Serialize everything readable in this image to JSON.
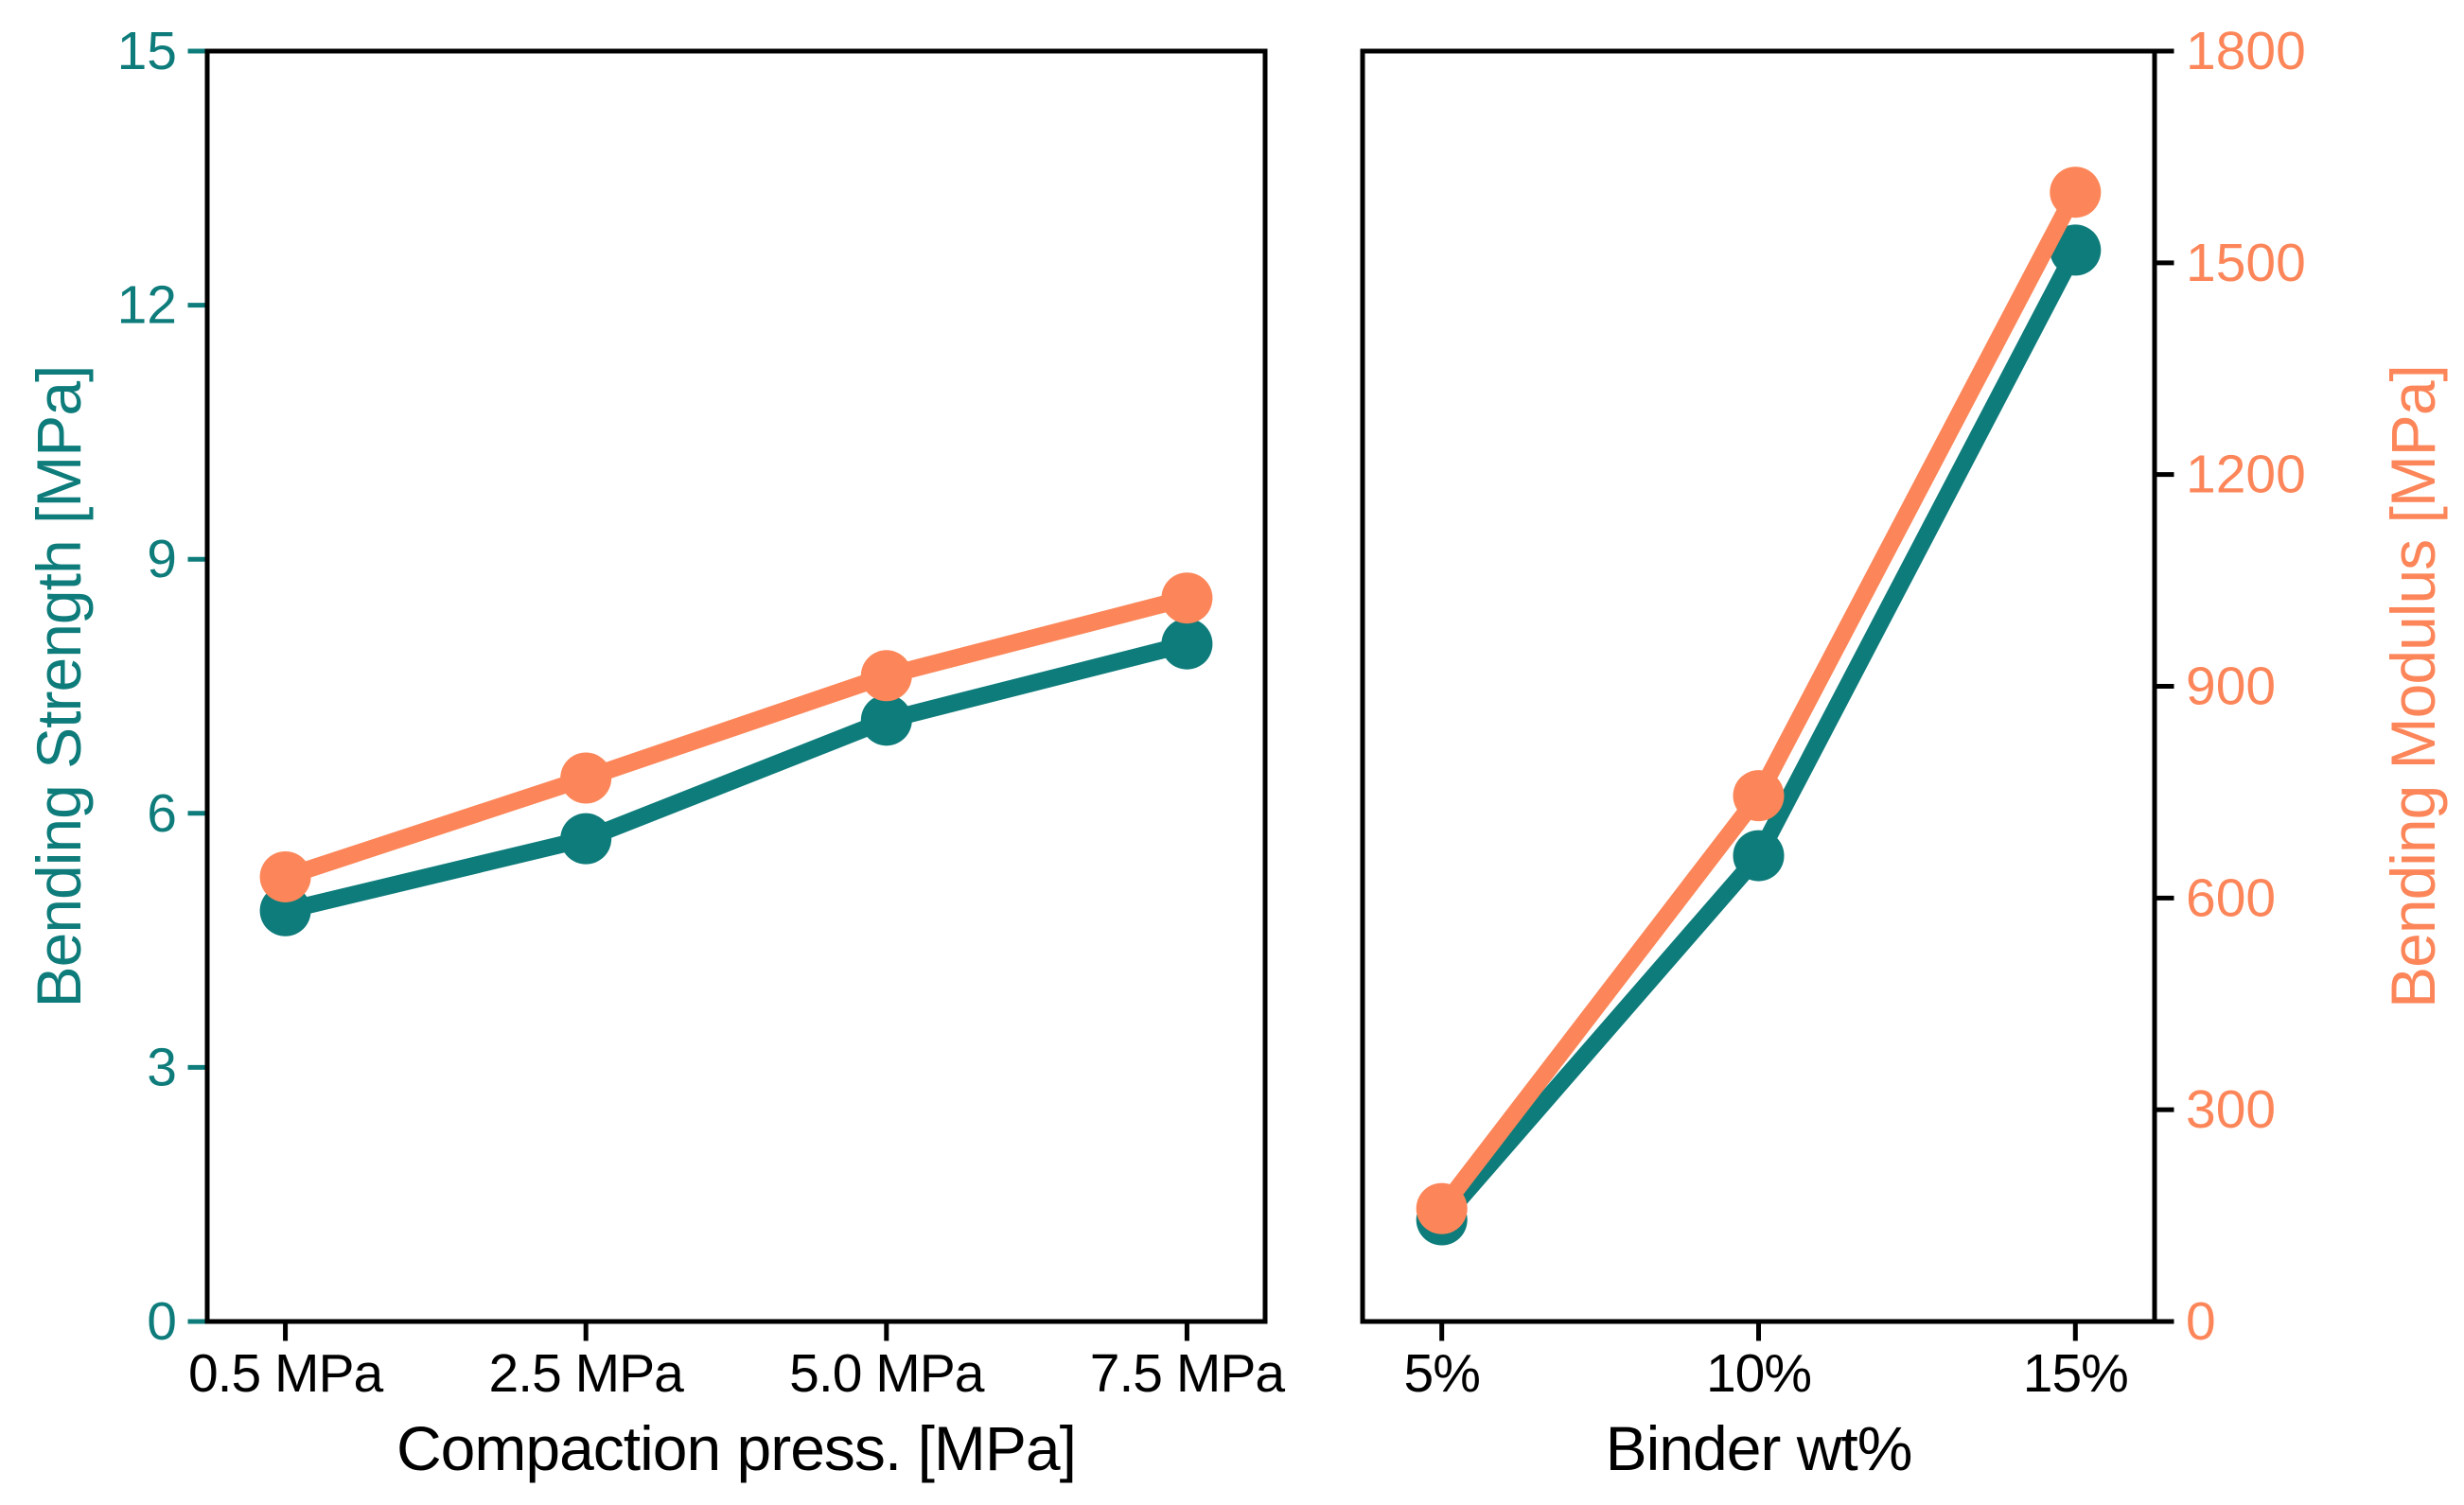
{
  "chart_data": {
    "type": "line",
    "title": "",
    "background": "#ffffff",
    "grid": false,
    "legend": null,
    "marker": "circle",
    "axes": {
      "strength": {
        "label": "Bending Strength [MPa]",
        "side": "left",
        "range": [
          0,
          15
        ],
        "ticks": [
          0,
          3,
          6,
          9,
          12,
          15
        ],
        "tick_labels": [
          "0",
          "3",
          "6",
          "9",
          "12",
          "15"
        ],
        "color": "#0e7c7b",
        "tick_mark_color": "#0e7c7b"
      },
      "modulus": {
        "label": "Bending Modulus [MPa]",
        "side": "right",
        "range": [
          0,
          1800
        ],
        "ticks": [
          0,
          300,
          600,
          900,
          1200,
          1500,
          1800
        ],
        "tick_labels": [
          "0",
          "300",
          "600",
          "900",
          "1200",
          "1500",
          "1800"
        ],
        "color": "#fc8659",
        "tick_mark_color": "#000000"
      }
    },
    "panels": [
      {
        "id": "compaction",
        "xlabel": "Compaction press. [MPa]",
        "categories": [
          "0.5 MPa",
          "2.5 MPa",
          "5.0 MPa",
          "7.5 MPa"
        ],
        "series": [
          {
            "name": "Bending Strength [MPa]",
            "yaxis": "strength",
            "color": "#0e7c7b",
            "values": [
              4.85,
              5.7,
              7.1,
              8.0
            ]
          },
          {
            "name": "Bending Modulus [MPa]",
            "yaxis": "modulus",
            "color": "#fc8659",
            "values": [
              630,
              770,
              915,
              1025
            ]
          }
        ]
      },
      {
        "id": "binder",
        "xlabel": "Binder wt%",
        "categories": [
          "5%",
          "10%",
          "15%"
        ],
        "series": [
          {
            "name": "Bending Strength [MPa]",
            "yaxis": "strength",
            "color": "#0e7c7b",
            "values": [
              1.2,
              5.5,
              12.65
            ]
          },
          {
            "name": "Bending Modulus [MPa]",
            "yaxis": "modulus",
            "color": "#fc8659",
            "values": [
              160,
              745,
              1600
            ]
          }
        ]
      }
    ],
    "spine_color": "#000000",
    "x_tick_label_color": "#000000"
  }
}
